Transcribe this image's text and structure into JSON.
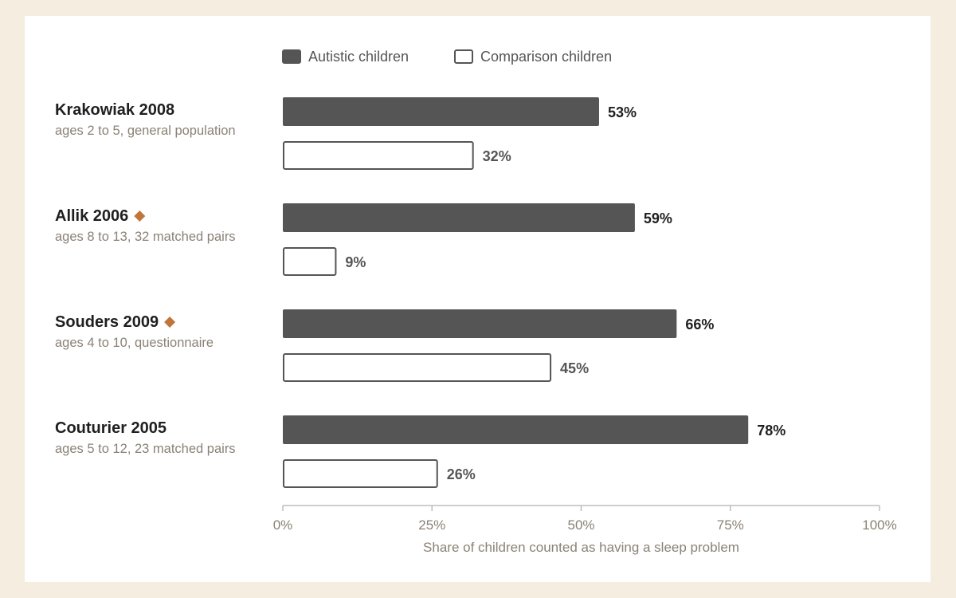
{
  "chart_data": {
    "type": "bar",
    "orientation": "horizontal",
    "legend": [
      {
        "key": "autistic",
        "label": "Autistic children",
        "color": "#555555",
        "filled": true
      },
      {
        "key": "comparison",
        "label": "Comparison children",
        "color": "#555555",
        "filled": false
      }
    ],
    "categories": [
      {
        "name": "Krakowiak 2008",
        "description": "ages 2 to 5, general population",
        "marked": false
      },
      {
        "name": "Allik 2006",
        "description": "ages 8 to 13, 32 matched pairs",
        "marked": true
      },
      {
        "name": "Souders 2009",
        "description": "ages 4 to 10, questionnaire",
        "marked": true
      },
      {
        "name": "Couturier 2005",
        "description": "ages 5 to 12, 23 matched pairs",
        "marked": false
      }
    ],
    "series": [
      {
        "name": "Autistic children",
        "values": [
          53,
          59,
          66,
          78
        ],
        "labels": [
          "53%",
          "59%",
          "66%",
          "78%"
        ]
      },
      {
        "name": "Comparison children",
        "values": [
          32,
          9,
          45,
          26
        ],
        "labels": [
          "32%",
          "9%",
          "45%",
          "26%"
        ]
      }
    ],
    "xlim": [
      0,
      100
    ],
    "ticks": [
      0,
      25,
      50,
      75,
      100
    ],
    "tick_labels": [
      "0%",
      "25%",
      "50%",
      "75%",
      "100%"
    ],
    "xlabel": "Share of children counted as having a sleep problem",
    "ylabel": "",
    "grid": false,
    "legend_position": "top",
    "colors": {
      "background": "#f4ede0",
      "panel": "#ffffff",
      "bar_fill": "#555555",
      "marker": "#c0763a",
      "axis": "#bdbdbd"
    }
  }
}
